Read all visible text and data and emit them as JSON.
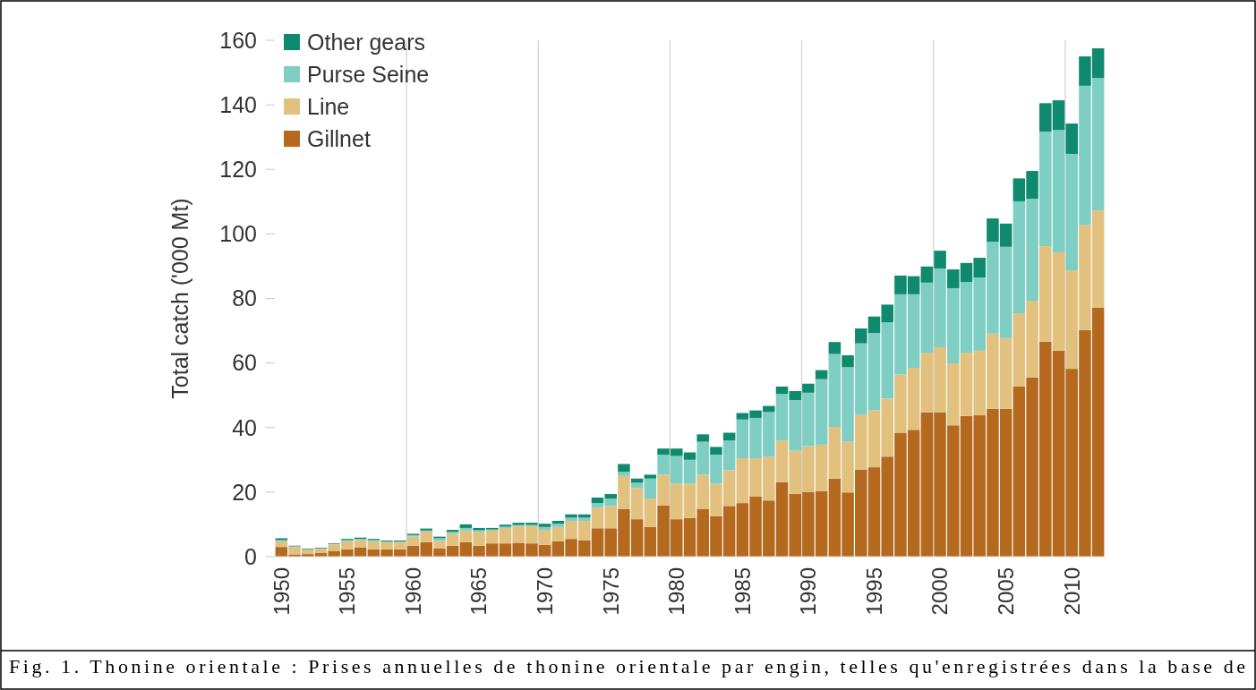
{
  "chart_data": {
    "type": "bar",
    "stacked": true,
    "ylabel": "Total catch ('000 Mt)",
    "categories": [
      "1950",
      null,
      null,
      null,
      null,
      "1955",
      null,
      null,
      null,
      null,
      "1960",
      null,
      null,
      null,
      null,
      "1965",
      null,
      null,
      null,
      null,
      "1970",
      null,
      null,
      null,
      null,
      "1975",
      null,
      null,
      null,
      null,
      "1980",
      null,
      null,
      null,
      null,
      "1985",
      null,
      null,
      null,
      null,
      "1990",
      null,
      null,
      null,
      null,
      "1995",
      null,
      null,
      null,
      null,
      "2000",
      null,
      null,
      null,
      null,
      "2005",
      null,
      null,
      null,
      null,
      "2010",
      null,
      null
    ],
    "series": [
      {
        "name": "Gillnet",
        "color": "#b5691f",
        "values": [
          3,
          0.7,
          0.8,
          1.1,
          1.8,
          2.3,
          2.9,
          2.3,
          2.3,
          2.3,
          3.4,
          4.5,
          2.5,
          3.4,
          4.5,
          3.4,
          4.1,
          4.1,
          4.3,
          4.1,
          3.7,
          4.8,
          5.5,
          5,
          8.8,
          8.8,
          14.8,
          11.6,
          9.2,
          15.9,
          11.6,
          12,
          14.8,
          12.5,
          15.7,
          16.6,
          18.7,
          17.4,
          23.1,
          19.4,
          20.1,
          20.3,
          24.2,
          19.9,
          27,
          27.7,
          31,
          38.4,
          39.3,
          44.7,
          44.7,
          40.7,
          43.6,
          43.8,
          45.8,
          45.8,
          52.7,
          55.5,
          66.6,
          63.8,
          58.2,
          70.2,
          77.1
        ]
      },
      {
        "name": "Line",
        "color": "#e2c17f",
        "values": [
          1.8,
          2.3,
          1.4,
          1.4,
          2,
          2.5,
          2.3,
          2.5,
          2.2,
          2.2,
          2.8,
          3.3,
          2.4,
          3.7,
          3.6,
          4.3,
          4,
          4.8,
          5.2,
          5.4,
          4.6,
          4.4,
          5.6,
          6.1,
          6.4,
          6.9,
          10.2,
          9.7,
          8.8,
          9.5,
          11,
          10.6,
          10.6,
          10.1,
          11.1,
          13.9,
          11.8,
          13.6,
          12.9,
          13.4,
          14.1,
          14.4,
          16,
          15.7,
          16.9,
          17.6,
          18,
          18,
          19.2,
          18.5,
          20.2,
          19.2,
          19.6,
          20,
          23.3,
          21.9,
          22.7,
          23.8,
          29.6,
          30.5,
          30.5,
          32.6,
          30.2
        ]
      },
      {
        "name": "Purse Seine",
        "color": "#7fcec4",
        "values": [
          0.3,
          0.2,
          0.1,
          0.1,
          0.1,
          0.3,
          0.3,
          0.3,
          0.2,
          0.2,
          0.5,
          0.3,
          0.8,
          0.6,
          0.8,
          0.5,
          0.3,
          0.4,
          0.3,
          0.3,
          0.9,
          1,
          1,
          1,
          1.4,
          2.3,
          1.3,
          1.6,
          6.2,
          6.2,
          8.6,
          7.4,
          10.2,
          9,
          9.2,
          12,
          12.5,
          13.8,
          14.4,
          15.7,
          16.6,
          20.3,
          22.6,
          23.1,
          22.2,
          24,
          23.6,
          24.9,
          22.8,
          21.7,
          24.4,
          23.3,
          21.9,
          22.7,
          28.5,
          28.3,
          34.7,
          31.6,
          35.5,
          37.9,
          36.1,
          43.1,
          41
        ]
      },
      {
        "name": "Other gears",
        "color": "#108a6f",
        "values": [
          0.6,
          0.2,
          0.2,
          0.2,
          0.2,
          0.4,
          0.4,
          0.4,
          0.3,
          0.3,
          0.4,
          0.6,
          0.5,
          0.6,
          1.1,
          0.7,
          0.5,
          0.6,
          0.7,
          0.7,
          1,
          0.9,
          1,
          1,
          1.7,
          1.4,
          2.4,
          1.3,
          1.2,
          1.9,
          2.3,
          2.3,
          2.3,
          2.4,
          2.4,
          2,
          2.3,
          1.9,
          2.3,
          2.8,
          2.8,
          2.8,
          3.7,
          3.7,
          4.6,
          5.1,
          5.5,
          5.8,
          5.6,
          5,
          5.5,
          5.8,
          5.9,
          6.1,
          7.2,
          7.2,
          7.1,
          8.6,
          8.8,
          9.2,
          9.4,
          9.1,
          9.2
        ]
      }
    ],
    "ylim": [
      0,
      160
    ],
    "yticks": [
      0,
      20,
      40,
      60,
      80,
      100,
      120,
      140,
      160
    ],
    "grid": "x",
    "legend": "top left",
    "annotations": [
      "Fig. 1. Thonine orientale : Prises annuelles de thonine orientale par engin, telles qu'enregistrées dans la base de"
    ]
  }
}
